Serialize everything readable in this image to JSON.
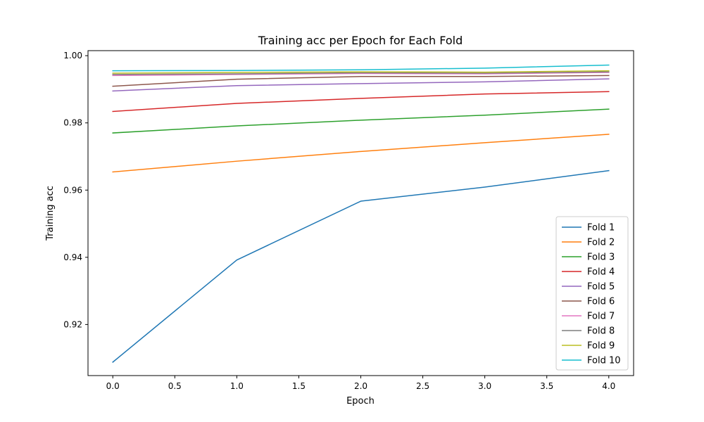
{
  "chart_data": {
    "type": "line",
    "title": "Training acc per Epoch for Each Fold",
    "xlabel": "Epoch",
    "ylabel": "Training acc",
    "xlim": [
      -0.2,
      4.2
    ],
    "ylim": [
      0.9048,
      1.0015
    ],
    "xticks": [
      0.0,
      0.5,
      1.0,
      1.5,
      2.0,
      2.5,
      3.0,
      3.5,
      4.0
    ],
    "xtick_labels": [
      "0.0",
      "0.5",
      "1.0",
      "1.5",
      "2.0",
      "2.5",
      "3.0",
      "3.5",
      "4.0"
    ],
    "yticks": [
      0.92,
      0.94,
      0.96,
      0.98,
      1.0
    ],
    "ytick_labels": [
      "0.92",
      "0.94",
      "0.96",
      "0.98",
      "1.00"
    ],
    "grid": false,
    "legend_position": "lower-right",
    "x": [
      0,
      1,
      2,
      3,
      4
    ],
    "series": [
      {
        "name": "Fold 1",
        "color": "#1f77b4",
        "values": [
          0.9088,
          0.9392,
          0.9567,
          0.9609,
          0.9658
        ]
      },
      {
        "name": "Fold 2",
        "color": "#ff7f0e",
        "values": [
          0.9654,
          0.9686,
          0.9715,
          0.9741,
          0.9766
        ]
      },
      {
        "name": "Fold 3",
        "color": "#2ca02c",
        "values": [
          0.977,
          0.9791,
          0.9808,
          0.9823,
          0.9841
        ]
      },
      {
        "name": "Fold 4",
        "color": "#d62728",
        "values": [
          0.9834,
          0.9858,
          0.9873,
          0.9886,
          0.9893
        ]
      },
      {
        "name": "Fold 5",
        "color": "#9467bd",
        "values": [
          0.9895,
          0.9911,
          0.9917,
          0.9922,
          0.9931
        ]
      },
      {
        "name": "Fold 6",
        "color": "#8c564b",
        "values": [
          0.9909,
          0.993,
          0.9938,
          0.9938,
          0.9941
        ]
      },
      {
        "name": "Fold 7",
        "color": "#e377c2",
        "values": [
          0.9941,
          0.9944,
          0.9947,
          0.9946,
          0.995
        ]
      },
      {
        "name": "Fold 8",
        "color": "#7f7f7f",
        "values": [
          0.9944,
          0.9946,
          0.9949,
          0.9948,
          0.9952
        ]
      },
      {
        "name": "Fold 9",
        "color": "#bcbd22",
        "values": [
          0.9948,
          0.995,
          0.9952,
          0.9951,
          0.9955
        ]
      },
      {
        "name": "Fold 10",
        "color": "#17becf",
        "values": [
          0.9955,
          0.9956,
          0.9958,
          0.9963,
          0.9972
        ]
      }
    ]
  }
}
